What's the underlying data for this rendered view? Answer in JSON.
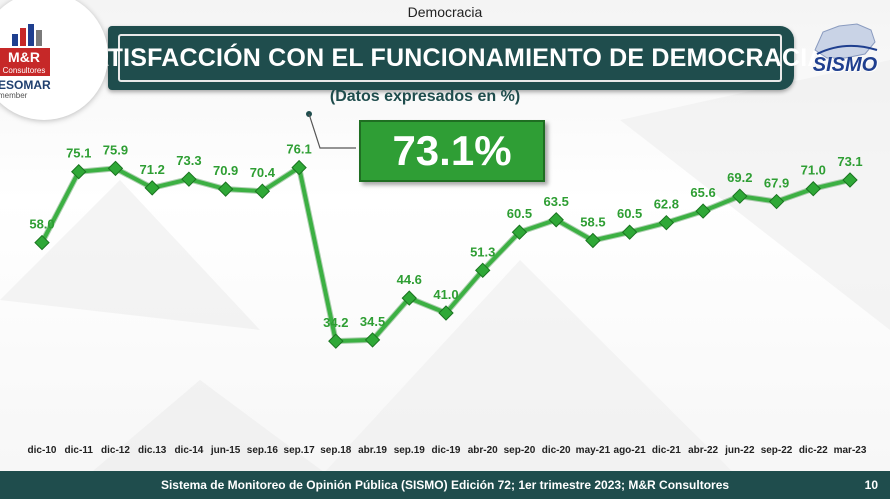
{
  "header": {
    "section": "Democracia",
    "title": "SATISFACCIÓN CON EL FUNCIONAMIENTO DE DEMOCRACIA",
    "subtitle": "(Datos expresados en %)",
    "highlight_value": "73.1%"
  },
  "logo": {
    "brand": "M&R",
    "brand_sub": "Consultores",
    "esomar": "ESOMAR",
    "member": "member"
  },
  "sismo_logo": {
    "text": "SISMO"
  },
  "footer": {
    "text": "Sistema de Monitoreo de Opinión Pública (SISMO) Edición 72; 1er trimestre 2023; M&R Consultores",
    "page": "10"
  },
  "colors": {
    "line": "#3cb043",
    "marker": "#2fa837",
    "label": "#2e9e33",
    "title_bar": "#1f4d4d",
    "highlight_box": "#2f9e35"
  },
  "chart_data": {
    "type": "line",
    "title": "SATISFACCIÓN CON EL FUNCIONAMIENTO DE DEMOCRACIA",
    "xlabel": "",
    "ylabel": "",
    "categories": [
      "dic-10",
      "dic-11",
      "dic-12",
      "dic.13",
      "dic-14",
      "jun-15",
      "sep.16",
      "sep.17",
      "sep.18",
      "abr.19",
      "sep.19",
      "dic-19",
      "abr-20",
      "sep-20",
      "dic-20",
      "may-21",
      "ago-21",
      "dic-21",
      "abr-22",
      "jun-22",
      "sep-22",
      "dic-22",
      "mar-23"
    ],
    "series": [
      {
        "values": [
          58.0,
          75.1,
          75.9,
          71.2,
          73.3,
          70.9,
          70.4,
          76.1,
          34.2,
          34.5,
          44.6,
          41.0,
          51.3,
          60.5,
          63.5,
          58.5,
          60.5,
          62.8,
          65.6,
          69.2,
          67.9,
          71.0,
          73.1
        ],
        "labels": [
          "58.0",
          "75.1",
          "75.9",
          "71.2",
          "73.3",
          "70.9",
          "70.4",
          "76.1",
          "34.2",
          "34.5",
          "44.6",
          "41.0",
          "51.3",
          "60.5",
          "63.5",
          "58.5",
          "60.5",
          "62.8",
          "65.6",
          "69.2",
          "67.9",
          "71.0",
          "73.1"
        ]
      }
    ],
    "ylim": [
      20,
      90
    ],
    "grid": false,
    "legend": "none"
  }
}
